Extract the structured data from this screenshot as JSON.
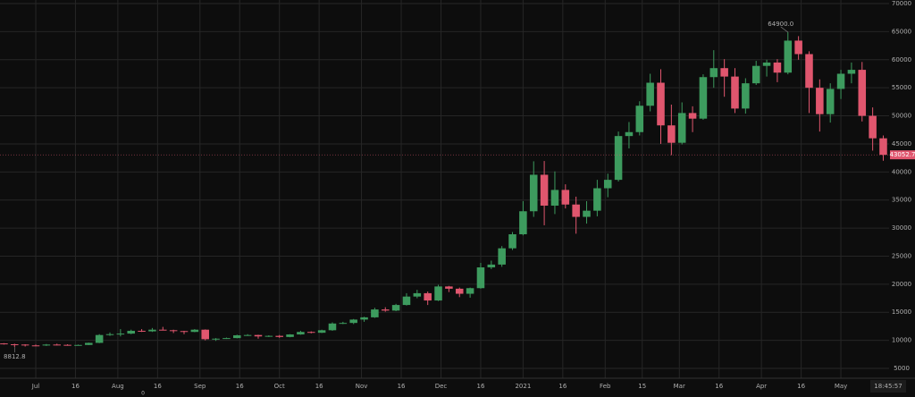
{
  "chart_data": {
    "type": "candlestick",
    "x": [
      -12,
      -8,
      -4,
      0,
      4,
      8,
      12,
      16,
      20,
      24,
      28,
      32,
      36,
      40,
      44,
      48,
      52,
      56,
      60,
      64,
      68,
      72,
      76,
      80,
      84,
      88,
      92,
      96,
      100,
      104,
      108,
      112,
      116,
      120,
      124,
      128,
      132,
      136,
      140,
      144,
      148,
      152,
      156,
      160,
      164,
      168,
      172,
      176,
      180,
      184,
      188,
      192,
      196,
      200,
      204,
      208,
      212,
      216,
      220,
      224,
      228,
      232,
      236,
      240,
      244,
      248,
      252,
      256,
      260,
      264,
      268,
      272,
      276,
      280,
      284,
      288,
      292,
      296,
      300,
      304,
      308,
      312,
      316,
      320
    ],
    "open": [
      9450,
      9300,
      9250,
      9100,
      9080,
      9250,
      9200,
      9150,
      9180,
      9550,
      10950,
      11100,
      11200,
      11700,
      11600,
      11900,
      11800,
      11650,
      11500,
      11900,
      10200,
      10300,
      10400,
      10900,
      10950,
      10700,
      10800,
      10600,
      11050,
      11500,
      11350,
      11800,
      13000,
      13100,
      13700,
      14100,
      15500,
      15300,
      16300,
      17800,
      18400,
      17100,
      19600,
      19200,
      18300,
      19300,
      23000,
      23500,
      26400,
      28900,
      33000,
      39500,
      34000,
      36800,
      34200,
      32000,
      33100,
      37100,
      38600,
      46400,
      47100,
      51800,
      55900,
      48300,
      45200,
      50500,
      49500,
      56900,
      58500,
      57000,
      51300,
      55800,
      58900,
      59500,
      57700,
      63400,
      61000,
      55000,
      50300,
      54800,
      57500,
      58200,
      50000,
      46000
    ],
    "high": [
      9500,
      9400,
      9300,
      9250,
      9350,
      9400,
      9300,
      9250,
      9600,
      11100,
      11400,
      12000,
      11900,
      12000,
      12200,
      12400,
      11900,
      11700,
      12000,
      11950,
      10400,
      10500,
      11000,
      11100,
      11000,
      10900,
      10950,
      11100,
      11700,
      11600,
      11900,
      13200,
      13300,
      13800,
      14200,
      15800,
      15900,
      16500,
      18400,
      19000,
      18700,
      19900,
      19700,
      19400,
      19400,
      23800,
      24200,
      26800,
      29300,
      34800,
      41900,
      41950,
      40100,
      37800,
      35600,
      34800,
      38600,
      39700,
      47200,
      48900,
      52600,
      57500,
      58300,
      52000,
      52400,
      51700,
      57400,
      61700,
      60100,
      58500,
      56700,
      59800,
      60000,
      60100,
      64900,
      64200,
      61500,
      56500,
      55800,
      58200,
      59500,
      59600,
      51500,
      46500
    ],
    "low": [
      9250,
      8812.8,
      8900,
      8950,
      9000,
      9100,
      9050,
      9100,
      9150,
      9500,
      10800,
      10700,
      11100,
      11500,
      11500,
      11800,
      11300,
      11100,
      11450,
      10000,
      9900,
      10250,
      10350,
      10800,
      10300,
      10600,
      10450,
      10550,
      11000,
      11250,
      11300,
      11700,
      12900,
      12900,
      13300,
      14000,
      15100,
      15200,
      16200,
      17500,
      16300,
      17000,
      18600,
      17700,
      17600,
      19200,
      22700,
      23100,
      26100,
      28700,
      32000,
      30500,
      32500,
      33500,
      29000,
      30800,
      32100,
      35500,
      38300,
      44200,
      46500,
      50800,
      45000,
      43000,
      44900,
      47100,
      49300,
      55000,
      53400,
      50500,
      50400,
      55500,
      57000,
      56000,
      57400,
      60000,
      50500,
      47200,
      48800,
      53000,
      55800,
      49000,
      43800,
      42000
    ],
    "close": [
      9300,
      9150,
      9100,
      9080,
      9250,
      9200,
      9150,
      9180,
      9550,
      10950,
      11100,
      11200,
      11700,
      11600,
      11900,
      11800,
      11650,
      11500,
      11900,
      10200,
      10300,
      10400,
      10900,
      10950,
      10700,
      10800,
      10600,
      11050,
      11500,
      11350,
      11800,
      13000,
      13100,
      13700,
      14100,
      15500,
      15300,
      16300,
      17800,
      18400,
      17100,
      19600,
      19200,
      18300,
      19300,
      23000,
      23500,
      26400,
      28900,
      33000,
      39500,
      34000,
      36800,
      34200,
      32000,
      33100,
      37100,
      38600,
      46400,
      47100,
      51800,
      55900,
      48300,
      45200,
      50500,
      49500,
      56900,
      58500,
      57000,
      51300,
      55800,
      58900,
      59500,
      57700,
      63400,
      61000,
      55000,
      50300,
      54800,
      57500,
      58200,
      50000,
      46000,
      43052.7
    ],
    "up_color": "#3d9b5e",
    "down_color": "#e0566e",
    "xlim": [
      -13.5,
      322.2
    ],
    "ylim": [
      3250,
      70640
    ],
    "xticks": [
      {
        "value": 0,
        "label": "Jul"
      },
      {
        "value": 15,
        "label": "16"
      },
      {
        "value": 31,
        "label": "Aug"
      },
      {
        "value": 46,
        "label": "16"
      },
      {
        "value": 62,
        "label": "Sep"
      },
      {
        "value": 77,
        "label": "16"
      },
      {
        "value": 92,
        "label": "Oct"
      },
      {
        "value": 107,
        "label": "16"
      },
      {
        "value": 123,
        "label": "Nov"
      },
      {
        "value": 138,
        "label": "16"
      },
      {
        "value": 153,
        "label": "Dec"
      },
      {
        "value": 168,
        "label": "16"
      },
      {
        "value": 184,
        "label": "2021"
      },
      {
        "value": 199,
        "label": "16"
      },
      {
        "value": 215,
        "label": "Feb"
      },
      {
        "value": 229,
        "label": "15"
      },
      {
        "value": 243,
        "label": "Mar"
      },
      {
        "value": 258,
        "label": "16"
      },
      {
        "value": 274,
        "label": "Apr"
      },
      {
        "value": 289,
        "label": "16"
      },
      {
        "value": 304,
        "label": "May"
      }
    ],
    "yticks": [
      5000,
      10000,
      15000,
      20000,
      25000,
      30000,
      35000,
      40000,
      45000,
      50000,
      55000,
      60000,
      65000,
      70000
    ],
    "grid": true,
    "high_label": "64900.0",
    "low_label": "8812.8",
    "last_label": "43052.7",
    "time_label": "18:45:57",
    "pane_label": "0"
  }
}
